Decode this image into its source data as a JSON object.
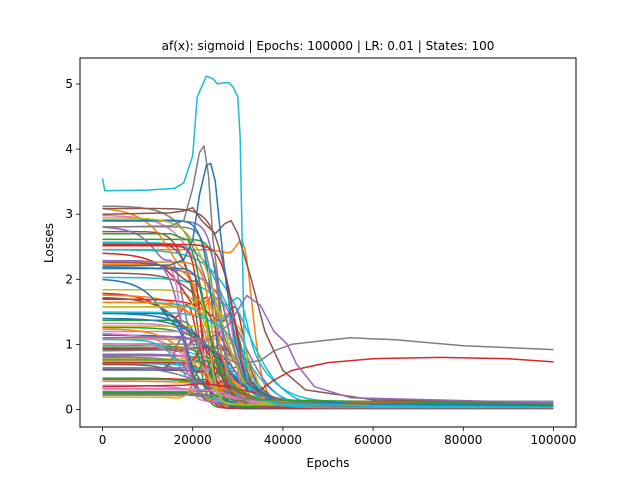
{
  "chart_data": {
    "type": "line",
    "title": "af(x): sigmoid | Epochs: 100000 | LR: 0.01 | States: 100",
    "xlabel": "Epochs",
    "ylabel": "Losses",
    "xlim": [
      -5000,
      105000
    ],
    "ylim": [
      -0.27,
      5.4
    ],
    "xticks": [
      0,
      20000,
      40000,
      60000,
      80000,
      100000
    ],
    "xtick_labels": [
      "0",
      "20000",
      "40000",
      "60000",
      "80000",
      "100000"
    ],
    "yticks": [
      0,
      1,
      2,
      3,
      4,
      5
    ],
    "ytick_labels": [
      "0",
      "1",
      "2",
      "3",
      "4",
      "5"
    ],
    "grid": false,
    "legend": "none",
    "series_count": 100,
    "palette": [
      "#1f77b4",
      "#ff7f0e",
      "#2ca02c",
      "#d62728",
      "#9467bd",
      "#8c564b",
      "#e377c2",
      "#7f7f7f",
      "#bcbd22",
      "#17becf"
    ],
    "highlighted_series": [
      {
        "color": "#17becf",
        "points": [
          [
            0,
            3.55
          ],
          [
            500,
            3.36
          ],
          [
            10000,
            3.37
          ],
          [
            16000,
            3.4
          ],
          [
            18000,
            3.48
          ],
          [
            20000,
            3.9
          ],
          [
            21000,
            4.8
          ],
          [
            23000,
            5.12
          ],
          [
            24500,
            5.08
          ],
          [
            25500,
            5.0
          ],
          [
            27000,
            5.02
          ],
          [
            28000,
            5.02
          ],
          [
            29000,
            4.95
          ],
          [
            30000,
            4.8
          ],
          [
            30500,
            4.2
          ],
          [
            31000,
            2.5
          ],
          [
            31500,
            0.7
          ],
          [
            32500,
            0.3
          ],
          [
            35000,
            0.15
          ],
          [
            40000,
            0.08
          ],
          [
            60000,
            0.05
          ],
          [
            100000,
            0.04
          ]
        ]
      },
      {
        "color": "#7f7f7f",
        "points": [
          [
            0,
            0.9
          ],
          [
            18000,
            0.92
          ],
          [
            21000,
            1.1
          ],
          [
            23000,
            1.0
          ],
          [
            26000,
            0.85
          ],
          [
            30000,
            0.7
          ],
          [
            35000,
            0.75
          ],
          [
            38000,
            0.9
          ],
          [
            42000,
            1.0
          ],
          [
            48000,
            1.05
          ],
          [
            55000,
            1.1
          ],
          [
            65000,
            1.07
          ],
          [
            80000,
            0.98
          ],
          [
            100000,
            0.92
          ]
        ]
      },
      {
        "color": "#d62728",
        "points": [
          [
            0,
            0.35
          ],
          [
            18000,
            0.37
          ],
          [
            22000,
            0.4
          ],
          [
            28000,
            0.35
          ],
          [
            34000,
            0.25
          ],
          [
            38000,
            0.45
          ],
          [
            42000,
            0.6
          ],
          [
            50000,
            0.72
          ],
          [
            60000,
            0.78
          ],
          [
            75000,
            0.8
          ],
          [
            90000,
            0.78
          ],
          [
            100000,
            0.73
          ]
        ]
      },
      {
        "color": "#7f7f7f",
        "points": [
          [
            0,
            2.8
          ],
          [
            15000,
            2.82
          ],
          [
            18000,
            2.9
          ],
          [
            20000,
            3.4
          ],
          [
            21500,
            3.95
          ],
          [
            22500,
            4.05
          ],
          [
            23500,
            3.6
          ],
          [
            24500,
            2.6
          ],
          [
            26000,
            1.8
          ],
          [
            28000,
            1.2
          ],
          [
            31000,
            0.5
          ],
          [
            35000,
            0.2
          ],
          [
            45000,
            0.1
          ],
          [
            100000,
            0.06
          ]
        ]
      },
      {
        "color": "#1f77b4",
        "points": [
          [
            0,
            2.2
          ],
          [
            15000,
            2.22
          ],
          [
            18000,
            2.3
          ],
          [
            20000,
            2.6
          ],
          [
            21500,
            3.3
          ],
          [
            23000,
            3.75
          ],
          [
            24000,
            3.78
          ],
          [
            25000,
            3.5
          ],
          [
            26000,
            2.8
          ],
          [
            27500,
            1.9
          ],
          [
            29500,
            1.0
          ],
          [
            32000,
            0.4
          ],
          [
            38000,
            0.15
          ],
          [
            60000,
            0.08
          ],
          [
            100000,
            0.06
          ]
        ]
      },
      {
        "color": "#8c564b",
        "points": [
          [
            0,
            3.0
          ],
          [
            15000,
            3.02
          ],
          [
            18000,
            3.05
          ],
          [
            20000,
            3.1
          ],
          [
            22000,
            2.9
          ],
          [
            25000,
            2.7
          ],
          [
            27000,
            2.85
          ],
          [
            28500,
            2.9
          ],
          [
            30000,
            2.7
          ],
          [
            33000,
            2.0
          ],
          [
            36000,
            1.2
          ],
          [
            40000,
            0.6
          ],
          [
            45000,
            0.3
          ],
          [
            60000,
            0.15
          ],
          [
            100000,
            0.1
          ]
        ]
      },
      {
        "color": "#9467bd",
        "points": [
          [
            0,
            1.1
          ],
          [
            18000,
            1.12
          ],
          [
            22000,
            1.0
          ],
          [
            28000,
            1.3
          ],
          [
            32000,
            1.75
          ],
          [
            35000,
            1.6
          ],
          [
            38000,
            1.2
          ],
          [
            41000,
            1.0
          ],
          [
            43000,
            0.7
          ],
          [
            47000,
            0.35
          ],
          [
            55000,
            0.18
          ],
          [
            100000,
            0.1
          ]
        ]
      },
      {
        "color": "#2ca02c",
        "points": [
          [
            0,
            2.7
          ],
          [
            15000,
            2.7
          ],
          [
            19000,
            2.6
          ],
          [
            20500,
            2.3
          ],
          [
            22000,
            1.8
          ],
          [
            24000,
            1.1
          ],
          [
            26000,
            0.6
          ],
          [
            30000,
            0.3
          ],
          [
            35000,
            0.15
          ],
          [
            100000,
            0.08
          ]
        ]
      }
    ]
  }
}
